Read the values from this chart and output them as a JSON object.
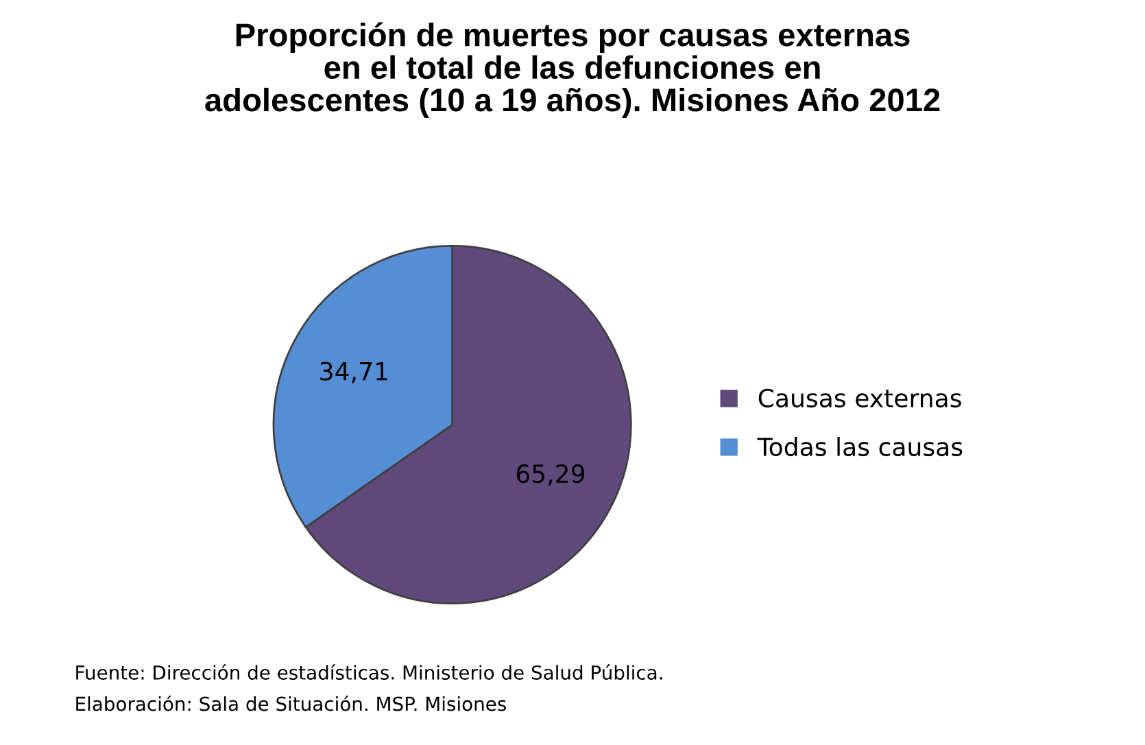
{
  "chart_data": {
    "type": "pie",
    "title": "Proporción de muertes por causas externas\nen el total de las defunciones en\nadolescentes (10 a 19 años). Misiones Año 2012",
    "categories": [
      "Causas externas",
      "Todas las causas"
    ],
    "values": [
      65.29,
      34.71
    ],
    "value_labels": [
      "65,29",
      "34,71"
    ],
    "colors": [
      "#604a7b",
      "#558ed5"
    ],
    "legend": "right",
    "annotations": [
      "Fuente: Dirección de estadísticas. Ministerio de Salud Pública.",
      "Elaboración: Sala de Situación. MSP. Misiones"
    ]
  }
}
